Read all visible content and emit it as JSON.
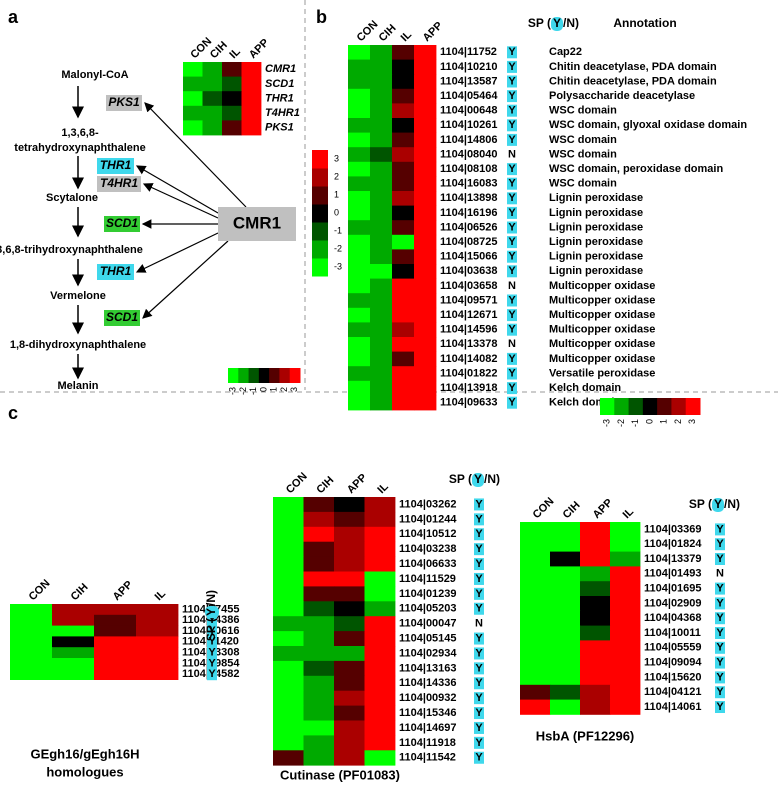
{
  "panel_a": {
    "label": "a",
    "compounds": [
      "Malonyl-CoA",
      "1,3,6,8-",
      "tetrahydroxynaphthalene",
      "Scytalone",
      ",3,6,8-trihydroxynaphthalene",
      "Vermelone",
      "1,8-dihydroxynaphthalene",
      "Melanin"
    ],
    "enzymes": [
      {
        "name": "PKS1",
        "color": "#c0c0c0"
      },
      {
        "name": "THR1",
        "color": "#3fd8ec"
      },
      {
        "name": "T4HR1",
        "color": "#c0c0c0"
      },
      {
        "name": "SCD1",
        "color": "#33cc33"
      },
      {
        "name": "THR1",
        "color": "#3fd8ec"
      },
      {
        "name": "SCD1",
        "color": "#33cc33"
      }
    ],
    "regulator": "CMR1",
    "heatmap": {
      "columns": [
        "CON",
        "CIH",
        "IL",
        "APP"
      ],
      "rows": [
        "CMR1",
        "SCD1",
        "THR1",
        "T4HR1",
        "PKS1"
      ],
      "values": [
        [
          -3,
          -2,
          1,
          3
        ],
        [
          -2,
          -2,
          -1,
          3
        ],
        [
          -3,
          -1,
          0,
          3
        ],
        [
          -2,
          -2,
          -1,
          3
        ],
        [
          -3,
          -2,
          1,
          3
        ]
      ]
    },
    "colorbar": {
      "lim": [
        -3,
        3
      ],
      "ticks": [
        -3,
        -2,
        -1,
        0,
        1,
        2,
        3
      ]
    }
  },
  "panel_b": {
    "label": "b",
    "sp_header": {
      "prefix": "SP (",
      "highlight": "Y",
      "suffix": "/N)"
    },
    "annotation_header": "Annotation",
    "colorbar": {
      "lim": [
        -3,
        3
      ],
      "ticks": [
        -3,
        -2,
        -1,
        0,
        1,
        2,
        3
      ]
    },
    "heatmap": {
      "columns": [
        "CON",
        "CIH",
        "IL",
        "APP"
      ],
      "rows": [
        "1104|11752",
        "1104|10210",
        "1104|13587",
        "1104|05464",
        "1104|00648",
        "1104|10261",
        "1104|14806",
        "1104|08040",
        "1104|08108",
        "1104|16083",
        "1104|13898",
        "1104|16196",
        "1104|06526",
        "1104|08725",
        "1104|15066",
        "1104|03638",
        "1104|03658",
        "1104|09571",
        "1104|12671",
        "1104|14596",
        "1104|13378",
        "1104|14082",
        "1104|01822",
        "1104|13918",
        "1104|09633"
      ],
      "sp": [
        "Y",
        "Y",
        "Y",
        "Y",
        "Y",
        "Y",
        "Y",
        "N",
        "Y",
        "Y",
        "Y",
        "Y",
        "Y",
        "Y",
        "Y",
        "Y",
        "N",
        "Y",
        "Y",
        "Y",
        "N",
        "Y",
        "Y",
        "Y",
        "Y"
      ],
      "annotations": [
        "Cap22",
        "Chitin deacetylase, PDA domain",
        "Chitin deacetylase, PDA domain",
        "Polysaccharide deacetylase",
        "WSC domain",
        "WSC domain, glyoxal oxidase domain",
        "WSC domain",
        "WSC domain",
        "WSC domain, peroxidase domain",
        "WSC domain",
        "Lignin peroxidase",
        "Lignin peroxidase",
        "Lignin peroxidase",
        "Lignin peroxidase",
        "Lignin peroxidase",
        "Lignin peroxidase",
        "Multicopper oxidase",
        "Multicopper oxidase",
        "Multicopper oxidase",
        "Multicopper oxidase",
        "Multicopper oxidase",
        "Multicopper oxidase",
        "Versatile peroxidase",
        "Kelch domain",
        "Kelch domain"
      ],
      "values": [
        [
          -3,
          -2,
          1,
          3
        ],
        [
          -2,
          -2,
          0,
          3
        ],
        [
          -2,
          -2,
          0,
          3
        ],
        [
          -3,
          -2,
          1,
          3
        ],
        [
          -3,
          -2,
          2,
          3
        ],
        [
          -2,
          -2,
          0,
          3
        ],
        [
          -3,
          -2,
          1,
          3
        ],
        [
          -2,
          -1,
          2,
          3
        ],
        [
          -3,
          -2,
          1,
          3
        ],
        [
          -2,
          -2,
          1,
          3
        ],
        [
          -3,
          -2,
          2,
          3
        ],
        [
          -3,
          -2,
          0,
          3
        ],
        [
          -2,
          -2,
          1,
          3
        ],
        [
          -3,
          -2,
          -3,
          3
        ],
        [
          -3,
          -2,
          1,
          3
        ],
        [
          -3,
          -3,
          0,
          3
        ],
        [
          -3,
          -2,
          3,
          3
        ],
        [
          -2,
          -2,
          3,
          3
        ],
        [
          -3,
          -2,
          3,
          3
        ],
        [
          -2,
          -2,
          2,
          3
        ],
        [
          -3,
          -2,
          3,
          3
        ],
        [
          -3,
          -2,
          1,
          3
        ],
        [
          -2,
          -2,
          3,
          3
        ],
        [
          -3,
          -2,
          3,
          3
        ],
        [
          -3,
          -2,
          3,
          3
        ]
      ]
    }
  },
  "panel_c": {
    "label": "c",
    "colorbar": {
      "lim": [
        -3,
        3
      ],
      "ticks": [
        -3,
        -2,
        -1,
        0,
        1,
        2,
        3
      ]
    },
    "heatmaps": [
      {
        "caption": [
          "GEgh16/gEgh16H",
          "homologues"
        ],
        "sp_header": {
          "prefix": "SP (",
          "highlight": "Y",
          "suffix": "/N)"
        },
        "columns": [
          "CON",
          "CIH",
          "APP",
          "IL"
        ],
        "rows": [
          "1104|07455",
          "1104|14386",
          "1104|00616",
          "1104|11420",
          "1104|13308",
          "1104|09854",
          "1104|14582"
        ],
        "sp": [
          "N",
          "Y",
          "Y",
          "Y",
          "Y",
          "Y",
          "Y"
        ],
        "values": [
          [
            -3,
            2,
            2,
            2
          ],
          [
            -3,
            2,
            1,
            2
          ],
          [
            -3,
            -3,
            1,
            2
          ],
          [
            -3,
            0,
            3,
            3
          ],
          [
            -3,
            -2,
            3,
            3
          ],
          [
            -3,
            -3,
            3,
            3
          ],
          [
            -3,
            -3,
            3,
            3
          ]
        ]
      },
      {
        "caption": [
          "Cutinase (PF01083)"
        ],
        "sp_header": {
          "prefix": "SP (",
          "highlight": "Y",
          "suffix": "/N)"
        },
        "columns": [
          "CON",
          "CIH",
          "APP",
          "IL"
        ],
        "rows": [
          "1104|03262",
          "1104|01244",
          "1104|10512",
          "1104|03238",
          "1104|06633",
          "1104|11529",
          "1104|01239",
          "1104|05203",
          "1104|00047",
          "1104|05145",
          "1104|02934",
          "1104|13163",
          "1104|14336",
          "1104|00932",
          "1104|15346",
          "1104|14697",
          "1104|11918",
          "1104|11542"
        ],
        "sp": [
          "Y",
          "Y",
          "Y",
          "Y",
          "Y",
          "Y",
          "Y",
          "Y",
          "N",
          "Y",
          "Y",
          "Y",
          "Y",
          "Y",
          "Y",
          "Y",
          "Y",
          "Y"
        ],
        "values": [
          [
            -3,
            1,
            0,
            2
          ],
          [
            -3,
            2,
            1,
            2
          ],
          [
            -3,
            3,
            2,
            3
          ],
          [
            -3,
            1,
            2,
            3
          ],
          [
            -3,
            1,
            2,
            3
          ],
          [
            -3,
            3,
            3,
            -3
          ],
          [
            -3,
            1,
            1,
            -3
          ],
          [
            -3,
            -1,
            0,
            -2
          ],
          [
            -2,
            -2,
            -1,
            3
          ],
          [
            -3,
            -2,
            1,
            3
          ],
          [
            -2,
            -2,
            -2,
            3
          ],
          [
            -3,
            -1,
            1,
            3
          ],
          [
            -3,
            -2,
            1,
            3
          ],
          [
            -3,
            -2,
            2,
            3
          ],
          [
            -3,
            -2,
            1,
            3
          ],
          [
            -3,
            -3,
            2,
            3
          ],
          [
            -3,
            -2,
            2,
            3
          ],
          [
            1,
            -2,
            2,
            -3
          ]
        ]
      },
      {
        "caption": [
          "HsbA (PF12296)"
        ],
        "sp_header": {
          "prefix": "SP (",
          "highlight": "Y",
          "suffix": "/N)"
        },
        "columns": [
          "CON",
          "CIH",
          "APP",
          "IL"
        ],
        "rows": [
          "1104|03369",
          "1104|01824",
          "1104|13379",
          "1104|01493",
          "1104|01695",
          "1104|02909",
          "1104|04368",
          "1104|10011",
          "1104|05559",
          "1104|09094",
          "1104|15620",
          "1104|04121",
          "1104|14061"
        ],
        "sp": [
          "Y",
          "Y",
          "Y",
          "N",
          "Y",
          "Y",
          "Y",
          "Y",
          "Y",
          "Y",
          "Y",
          "Y",
          "Y"
        ],
        "values": [
          [
            -3,
            -3,
            3,
            -3
          ],
          [
            -3,
            -3,
            3,
            -3
          ],
          [
            -3,
            0,
            3,
            -2
          ],
          [
            -3,
            -3,
            -2,
            3
          ],
          [
            -3,
            -3,
            -1,
            3
          ],
          [
            -3,
            -3,
            0,
            3
          ],
          [
            -3,
            -3,
            0,
            3
          ],
          [
            -3,
            -3,
            -1,
            3
          ],
          [
            -3,
            -3,
            3,
            3
          ],
          [
            -3,
            -3,
            3,
            3
          ],
          [
            -3,
            -3,
            3,
            3
          ],
          [
            1,
            -1,
            2,
            3
          ],
          [
            3,
            -3,
            2,
            3
          ]
        ]
      }
    ]
  }
}
